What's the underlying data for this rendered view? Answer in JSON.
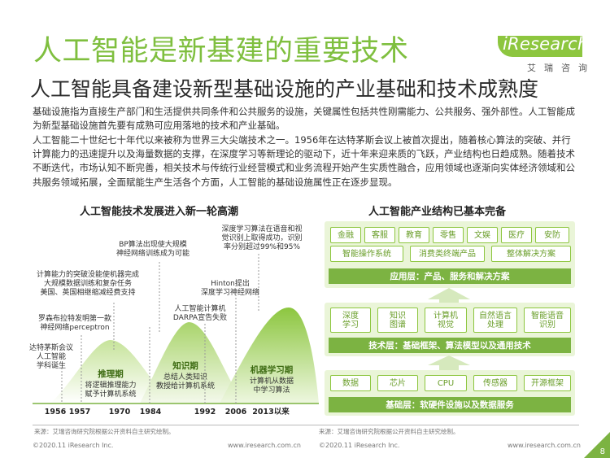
{
  "page": {
    "title": "人工智能是新基建的重要技术",
    "subtitle": "人工智能具备建设新型基础设施的产业基础和技术成熟度",
    "logo": {
      "brand": "iResearch",
      "sub": "艾瑞咨询"
    },
    "paragraph1": "基础设施指为直接生产部门和生活提供共同条件和公共服务的设施，关键属性包括共性刚需能力、公共服务、强外部性。人工智能成为新型基础设施首先要有成熟可应用落地的技术和产业基础。",
    "paragraph2": "人工智能二十世纪七十年代以来被称为世界三大尖端技术之一。1956年在达特茅斯会议上被首次提出，随着核心算法的突破、并行计算能力的迅速提升以及海量数据的支撑，在深度学习等新理论的驱动下，近十年来迎来质的飞跃，产业结构也日趋成熟。随着技术不断迭代，市场认知不断完善，相关技术与传统行业经营模式和业务流程开始产生实质性融合，应用领域也逐渐向实体经济领域和公共服务领域拓展，全面赋能生产生活各个方面，人工智能的基础设施属性正在逐步显现。",
    "page_number": "8"
  },
  "left_chart": {
    "title": "人工智能技术发展进入新一轮高潮",
    "annotations": [
      "达特茅斯会议\n人工智能\n学科诞生",
      "罗森布拉特发明第一款\n神经网络perceptron",
      "计算能力的突破没能使机器完成\n大规模数据训练和复杂任务\n美国、英国相继缩减经费支持",
      "BP算法出现使大规模\n神经网络训练成为可能",
      "人工智能计算机\nDARPA宣告失败",
      "Hinton提出\n深度学习神经网络",
      "深度学习算法在语音和视\n觉识别上取得成功，识别\n率分别超过99%和95%"
    ],
    "periods": [
      {
        "name": "推理期",
        "desc": "将逻辑推理能力\n赋予计算机系统"
      },
      {
        "name": "知识期",
        "desc": "总结人类知识\n教授给计算机系统"
      },
      {
        "name": "机器学习期",
        "desc": "计算机从数据\n中学习算法"
      }
    ],
    "years": [
      "1956",
      "1957",
      "1970",
      "1984",
      "1992",
      "2006",
      "2013以来"
    ]
  },
  "right_chart": {
    "title": "人工智能产业结构已基本完备",
    "app_row1": [
      "金融",
      "客服",
      "教育",
      "零售",
      "文娱",
      "医疗",
      "安防"
    ],
    "app_row2": [
      "智能操作系统",
      "消费类终端产品",
      "整体解决方案"
    ],
    "app_bar": "应用层：产品、服务和解决方案",
    "tech_row": [
      "深度\n学习",
      "知识\n图谱",
      "计算机\n视觉",
      "自然语言\n处理",
      "智能语音\n识别"
    ],
    "tech_bar": "技术层：基础框架、算法模型以及通用技术",
    "base_row": [
      "数据",
      "芯片",
      "CPU",
      "传感器",
      "开源框架"
    ],
    "base_bar": "基础层：软硬件设施以及数据服务"
  },
  "footer": {
    "source_left": "来源：艾瑞咨询研究院根据公开资料自主研究绘制。",
    "source_right": "来源：艾瑞咨询研究院根据公开资料自主研究绘制。",
    "copyright_left": "©2020.11 iResearch Inc.",
    "url_left": "www.iresearch.com.cn",
    "copyright_right": "©2020.11 iResearch Inc.",
    "url_right": "www.iresearch.com.cn"
  },
  "colors": {
    "accent": "#7fbf3f",
    "dark_green": "#6a9e2a",
    "bar_green": "#7cb342"
  }
}
